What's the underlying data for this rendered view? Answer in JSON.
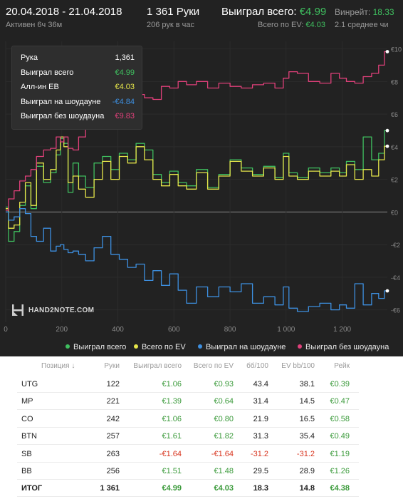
{
  "header": {
    "date_range": "20.04.2018 - 21.04.2018",
    "active": "Активен 6ч 36м",
    "hands": "1 361 Руки",
    "hands_per_hour": "206 рук в час",
    "won_total_label": "Выиграл всего:",
    "won_total_value": "€4.99",
    "ev_label": "Всего по EV:",
    "ev_value": "€4.03",
    "winrate_label": "Винрейт:",
    "winrate_value": "18.33",
    "avg": "2.1 среднее чи"
  },
  "tooltip": {
    "rows": [
      {
        "label": "Рука",
        "value": "1,361",
        "color": "#ffffff"
      },
      {
        "label": "Выиграл всего",
        "value": "€4.99",
        "color": "#3fbf5f"
      },
      {
        "label": "Алл-ин EB",
        "value": "€4.03",
        "color": "#e6e64a"
      },
      {
        "label": "Выиграл на шоудауне",
        "value": "-€4.84",
        "color": "#3d8fe0"
      },
      {
        "label": "Выиграл без шоудауна",
        "value": "€9.83",
        "color": "#e0407a"
      }
    ]
  },
  "logo": {
    "text": "HAND2NOTE.COM",
    "icon": "hand2note-logo-icon"
  },
  "legend": [
    {
      "label": "Выиграл всего",
      "color": "#3fbf5f"
    },
    {
      "label": "Всего по EV",
      "color": "#e6e64a"
    },
    {
      "label": "Выиграл на шоудауне",
      "color": "#3d8fe0"
    },
    {
      "label": "Выиграл без шоудауна",
      "color": "#e0407a"
    }
  ],
  "chart_data": {
    "type": "line",
    "xlim": [
      0,
      1361
    ],
    "ylim": [
      -6.5,
      10.2
    ],
    "x_ticks": [
      0,
      200,
      400,
      600,
      800,
      1000,
      1200
    ],
    "x_tick_labels": [
      "0",
      "200",
      "400",
      "600",
      "800",
      "1 000",
      "1 200"
    ],
    "y_ticks": [
      10,
      8,
      6,
      4,
      2,
      0,
      -2,
      -4,
      -6
    ],
    "y_tick_labels": [
      "€10",
      "€8",
      "€6",
      "€4",
      "€2",
      "€0",
      "-€2",
      "-€4",
      "-€6"
    ],
    "grid": true,
    "legend": "bottom",
    "series": [
      {
        "name": "Выиграл всего",
        "color": "#3fbf5f",
        "x": [
          0,
          20,
          40,
          60,
          80,
          100,
          120,
          150,
          170,
          190,
          200,
          215,
          230,
          250,
          270,
          300,
          330,
          360,
          390,
          420,
          450,
          480,
          510,
          540,
          570,
          600,
          630,
          660,
          700,
          740,
          780,
          820,
          860,
          900,
          940,
          980,
          1000,
          1020,
          1060,
          1100,
          1140,
          1180,
          1200,
          1230,
          1260,
          1290,
          1320,
          1340,
          1361
        ],
        "y": [
          0.3,
          -1.8,
          -1.2,
          0.4,
          1.6,
          0.2,
          2.8,
          1.8,
          2.4,
          3.5,
          4.5,
          4.2,
          1.2,
          3.0,
          2.2,
          1.5,
          3.0,
          3.4,
          2.6,
          3.6,
          3.2,
          4.2,
          3.8,
          2.3,
          1.8,
          2.5,
          1.8,
          1.6,
          2.6,
          1.5,
          2.3,
          3.2,
          2.7,
          2.3,
          2.8,
          2.1,
          3.6,
          2.4,
          2.1,
          2.7,
          2.4,
          2.7,
          2.4,
          3.1,
          2.6,
          4.6,
          3.2,
          3.6,
          4.99
        ]
      },
      {
        "name": "Всего по EV",
        "color": "#e6e64a",
        "x": [
          0,
          20,
          40,
          60,
          80,
          100,
          120,
          150,
          170,
          190,
          200,
          215,
          230,
          250,
          270,
          300,
          330,
          360,
          390,
          420,
          450,
          480,
          510,
          540,
          570,
          600,
          630,
          660,
          700,
          740,
          780,
          820,
          860,
          900,
          940,
          980,
          1000,
          1020,
          1060,
          1100,
          1140,
          1180,
          1200,
          1230,
          1260,
          1290,
          1320,
          1340,
          1361
        ],
        "y": [
          0.2,
          -1.0,
          -0.8,
          0.6,
          1.8,
          0.4,
          3.0,
          2.0,
          2.6,
          3.8,
          4.6,
          4.0,
          1.8,
          2.2,
          1.4,
          0.9,
          2.0,
          3.1,
          2.0,
          3.4,
          3.0,
          4.0,
          3.2,
          2.0,
          1.6,
          2.3,
          1.6,
          1.4,
          2.4,
          1.4,
          2.2,
          3.1,
          2.5,
          2.2,
          2.7,
          2.0,
          3.4,
          2.2,
          2.0,
          2.5,
          2.2,
          2.5,
          2.2,
          2.9,
          2.0,
          2.6,
          2.2,
          3.2,
          4.03
        ]
      },
      {
        "name": "Выиграл на шоудауне",
        "color": "#3d8fe0",
        "x": [
          0,
          20,
          40,
          60,
          80,
          100,
          120,
          150,
          170,
          190,
          200,
          215,
          230,
          250,
          270,
          300,
          330,
          360,
          390,
          420,
          450,
          480,
          510,
          540,
          570,
          600,
          630,
          660,
          700,
          740,
          780,
          820,
          860,
          900,
          940,
          980,
          1000,
          1020,
          1060,
          1100,
          1140,
          1180,
          1200,
          1230,
          1260,
          1290,
          1320,
          1340,
          1361
        ],
        "y": [
          0.0,
          -0.5,
          -0.3,
          0.2,
          -0.1,
          -1.5,
          -1.8,
          -1.0,
          -2.4,
          -2.1,
          -2.0,
          -2.3,
          -2.5,
          -2.4,
          -2.6,
          -3.0,
          -2.2,
          -1.5,
          -2.6,
          -2.9,
          -3.4,
          -3.2,
          -4.2,
          -3.6,
          -4.5,
          -3.8,
          -4.8,
          -5.6,
          -4.6,
          -5.2,
          -4.6,
          -4.9,
          -4.4,
          -5.6,
          -5.2,
          -5.7,
          -4.6,
          -5.9,
          -6.1,
          -5.8,
          -5.6,
          -6.0,
          -5.7,
          -5.9,
          -4.4,
          -5.7,
          -5.0,
          -5.3,
          -4.84
        ]
      },
      {
        "name": "Выиграл без шоудауна",
        "color": "#e0407a",
        "x": [
          0,
          20,
          40,
          60,
          80,
          100,
          120,
          150,
          170,
          190,
          200,
          215,
          230,
          250,
          270,
          300,
          330,
          360,
          390,
          420,
          450,
          480,
          510,
          540,
          570,
          600,
          630,
          660,
          700,
          740,
          780,
          820,
          860,
          900,
          940,
          980,
          1000,
          1020,
          1060,
          1100,
          1140,
          1180,
          1200,
          1230,
          1260,
          1290,
          1320,
          1340,
          1361
        ],
        "y": [
          0.1,
          0.8,
          1.3,
          1.9,
          2.2,
          2.6,
          3.4,
          3.8,
          3.9,
          4.6,
          4.3,
          4.6,
          3.9,
          3.8,
          4.6,
          5.6,
          5.1,
          5.3,
          6.1,
          6.4,
          6.9,
          7.2,
          7.0,
          6.9,
          7.7,
          7.6,
          8.0,
          7.8,
          8.0,
          7.6,
          7.9,
          7.7,
          7.6,
          7.8,
          7.9,
          7.6,
          8.2,
          8.6,
          8.5,
          8.0,
          7.9,
          8.5,
          8.2,
          8.0,
          7.9,
          8.3,
          8.5,
          9.0,
          9.83
        ]
      }
    ]
  },
  "table": {
    "headers": [
      "Позиция",
      "Руки",
      "Выиграл всего",
      "Всего по EV",
      "бб/100",
      "EV bb/100",
      "Рейк"
    ],
    "rows": [
      {
        "pos": "UTG",
        "hands": "122",
        "won": "€1.06",
        "ev": "€0.93",
        "bb": "43.4",
        "evbb": "38.1",
        "rake": "€0.39"
      },
      {
        "pos": "MP",
        "hands": "221",
        "won": "€1.39",
        "ev": "€0.64",
        "bb": "31.4",
        "evbb": "14.5",
        "rake": "€0.47"
      },
      {
        "pos": "CO",
        "hands": "242",
        "won": "€1.06",
        "ev": "€0.80",
        "bb": "21.9",
        "evbb": "16.5",
        "rake": "€0.58"
      },
      {
        "pos": "BTN",
        "hands": "257",
        "won": "€1.61",
        "ev": "€1.82",
        "bb": "31.3",
        "evbb": "35.4",
        "rake": "€0.49"
      },
      {
        "pos": "SB",
        "hands": "263",
        "won": "-€1.64",
        "ev": "-€1.64",
        "bb": "-31.2",
        "evbb": "-31.2",
        "rake": "€1.19"
      },
      {
        "pos": "BB",
        "hands": "256",
        "won": "€1.51",
        "ev": "€1.48",
        "bb": "29.5",
        "evbb": "28.9",
        "rake": "€1.26"
      }
    ],
    "total": {
      "pos": "ИТОГ",
      "hands": "1 361",
      "won": "€4.99",
      "ev": "€4.03",
      "bb": "18.3",
      "evbb": "14.8",
      "rake": "€4.38"
    }
  }
}
